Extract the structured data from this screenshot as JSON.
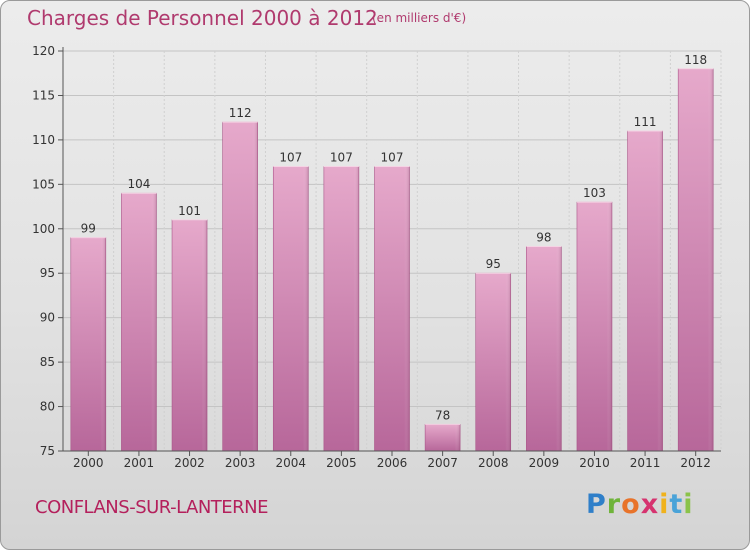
{
  "title": "Charges de Personnel 2000 à 2012",
  "unit_note": "(en milliers d'€)",
  "place": "CONFLANS-SUR-LANTERNE",
  "brand": {
    "letters": [
      "P",
      "r",
      "o",
      "x",
      "i",
      "t",
      "i"
    ],
    "colors": [
      "#2f7fc9",
      "#6fb43a",
      "#e8732a",
      "#d6336f",
      "#f0b21c",
      "#4aa3d8",
      "#8bc34a"
    ]
  },
  "colors": {
    "bar": "#d98cb6",
    "bar_dark": "#b35d8e",
    "text": "#b03a6e"
  },
  "chart_data": {
    "type": "bar",
    "title": "Charges de Personnel 2000 à 2012",
    "subtitle": "(en milliers d'€)",
    "categories": [
      "2000",
      "2001",
      "2002",
      "2003",
      "2004",
      "2005",
      "2006",
      "2007",
      "2008",
      "2009",
      "2010",
      "2011",
      "2012"
    ],
    "values": [
      99,
      104,
      101,
      112,
      107,
      107,
      107,
      78,
      95,
      98,
      103,
      111,
      118
    ],
    "ylim": [
      75,
      120
    ],
    "yticks": [
      75,
      80,
      85,
      90,
      95,
      100,
      105,
      110,
      115,
      120
    ],
    "grid": true
  }
}
